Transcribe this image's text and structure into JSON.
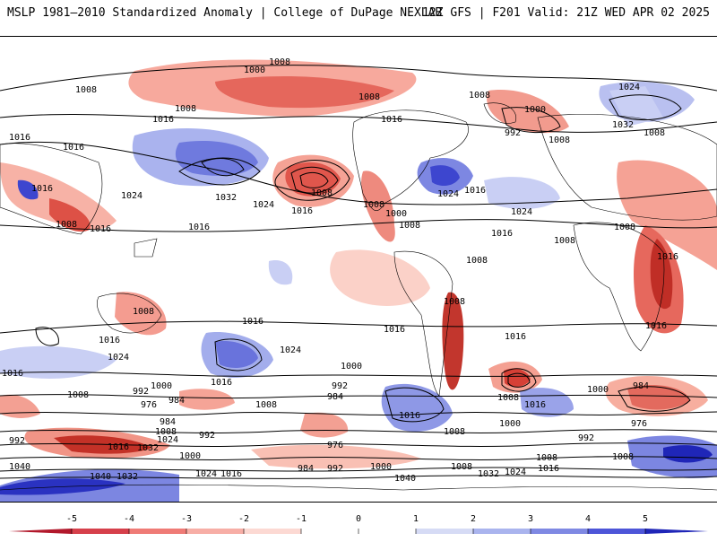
{
  "header": {
    "title_left": "MSLP 1981–2010 Standardized Anomaly | College of DuPage NEXLAB",
    "title_right": "12Z GFS | F201 Valid: 21Z WED APR 02 2025"
  },
  "colorbar": {
    "ticks": [
      "-5",
      "-4",
      "-3",
      "-2",
      "-1",
      "0",
      "1",
      "2",
      "3",
      "4",
      "5"
    ],
    "colors": [
      "#b2182b",
      "#d6404b",
      "#ef7b76",
      "#f7aea6",
      "#fcd9d3",
      "#ffffff",
      "#d6dbf5",
      "#aab4ee",
      "#7f89e3",
      "#4d55d8",
      "#1f26b8"
    ]
  },
  "map": {
    "isobar_labels": [
      "1008",
      "1000",
      "1016",
      "1024",
      "1032",
      "992",
      "984",
      "976",
      "1040"
    ],
    "palette": {
      "neg_strong": "#c9302c",
      "neg_mid": "#ec7d72",
      "neg_light": "#f9b9ad",
      "pos_light": "#c9cff4",
      "pos_mid": "#8c95e6",
      "pos_strong": "#3a42cf"
    }
  }
}
